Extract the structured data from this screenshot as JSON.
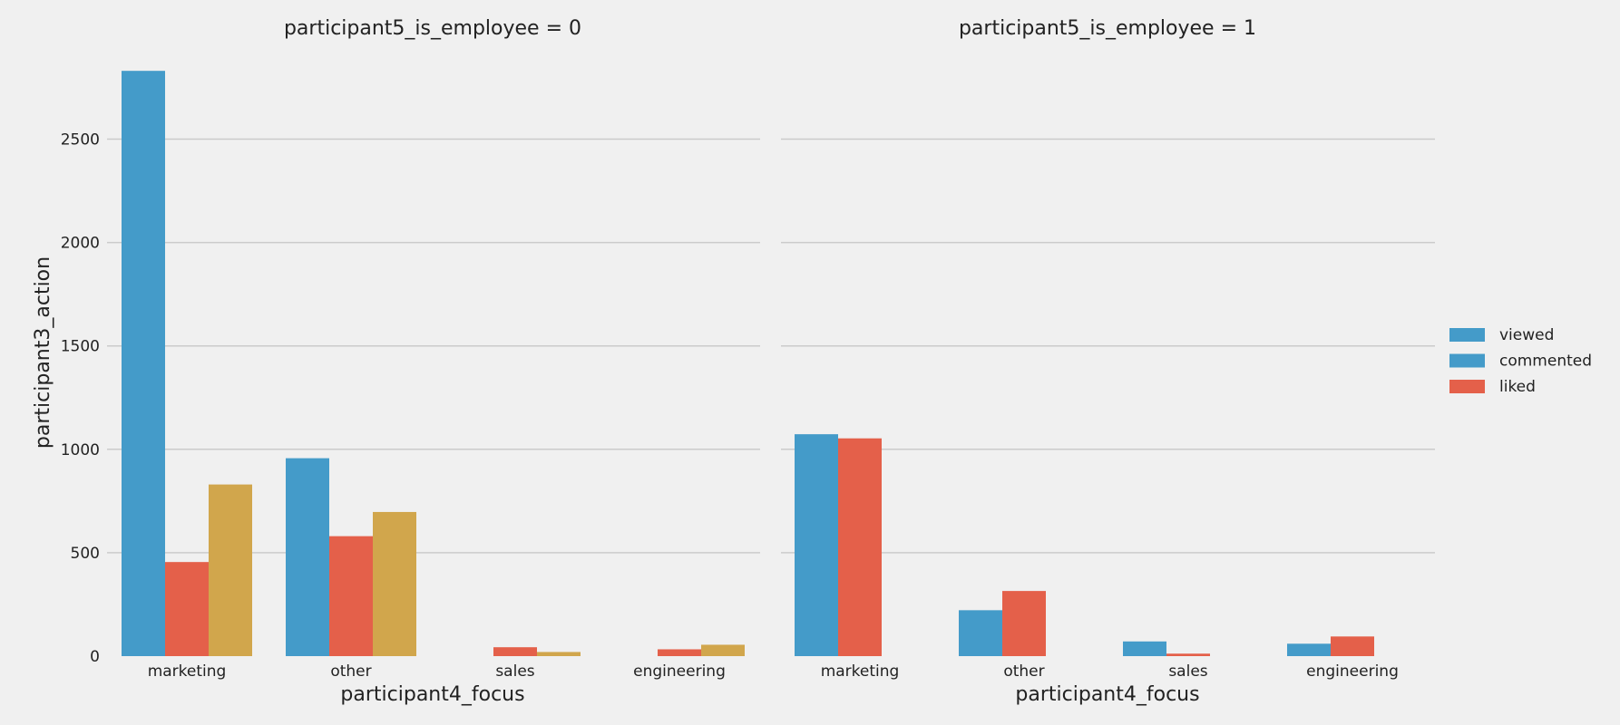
{
  "chart_data": {
    "type": "bar",
    "ylabel": "participant3_action",
    "ylim": [
      0,
      2900
    ],
    "yticks": [
      0,
      500,
      1000,
      1500,
      2000,
      2500
    ],
    "grid": true,
    "legend": {
      "placement": "right",
      "entries": [
        {
          "label": "viewed",
          "color": "#449bc9"
        },
        {
          "label": "commented",
          "color": "#449bc9"
        },
        {
          "label": "liked",
          "color": "#e4604a"
        }
      ]
    },
    "panels": [
      {
        "title": "participant5_is_employee = 0",
        "xlabel": "participant4_focus",
        "categories": [
          "marketing",
          "other",
          "sales",
          "engineering"
        ],
        "series": [
          {
            "color": "#449bc9",
            "values": [
              2830,
              957,
              0,
              0
            ]
          },
          {
            "color": "#e4604a",
            "values": [
              455,
              580,
              43,
              33
            ]
          },
          {
            "color": "#d1a64c",
            "values": [
              830,
              697,
              20,
              55
            ]
          }
        ]
      },
      {
        "title": "participant5_is_employee = 1",
        "xlabel": "participant4_focus",
        "categories": [
          "marketing",
          "other",
          "sales",
          "engineering"
        ],
        "series": [
          {
            "color": "#449bc9",
            "values": [
              1073,
              222,
              71,
              60
            ]
          },
          {
            "color": "#e4604a",
            "values": [
              1053,
              315,
              12,
              95
            ]
          },
          {
            "color": "#d1a64c",
            "values": [
              0,
              0,
              0,
              0
            ]
          }
        ]
      }
    ]
  }
}
